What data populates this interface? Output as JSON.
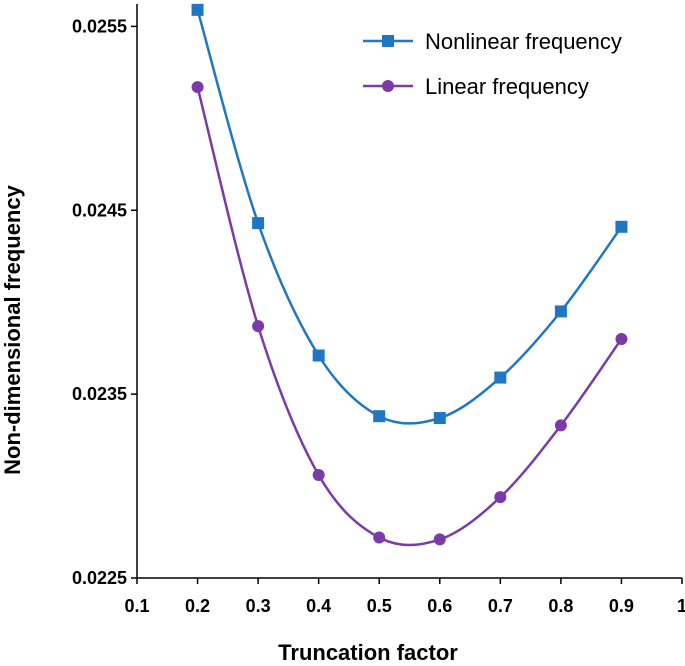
{
  "chart_data": {
    "type": "line",
    "title": "",
    "xlabel": "Truncation factor",
    "ylabel": "Non-dimensional frequency",
    "x": [
      0.2,
      0.3,
      0.4,
      0.5,
      0.6,
      0.7,
      0.8,
      0.9
    ],
    "xlim": [
      0.1,
      1.0
    ],
    "ylim": [
      0.0225,
      0.0256
    ],
    "xticks": [
      "0.1",
      "0.2",
      "0.3",
      "0.4",
      "0.5",
      "0.6",
      "0.7",
      "0.8",
      "0.9",
      "1"
    ],
    "yticks": [
      "0.0225",
      "0.0235",
      "0.0245",
      "0.0255"
    ],
    "grid": false,
    "legend_position": "top-right",
    "series": [
      {
        "name": "Nonlinear frequency",
        "marker": "square",
        "color": "#1f77c4",
        "values": [
          0.02559,
          0.02443,
          0.02371,
          0.02338,
          0.02337,
          0.02359,
          0.02395,
          0.02441
        ]
      },
      {
        "name": "Linear frequency",
        "marker": "circle",
        "color": "#7a3aa8",
        "values": [
          0.02517,
          0.02387,
          0.02306,
          0.02272,
          0.02271,
          0.02294,
          0.02333,
          0.0238
        ]
      }
    ]
  }
}
